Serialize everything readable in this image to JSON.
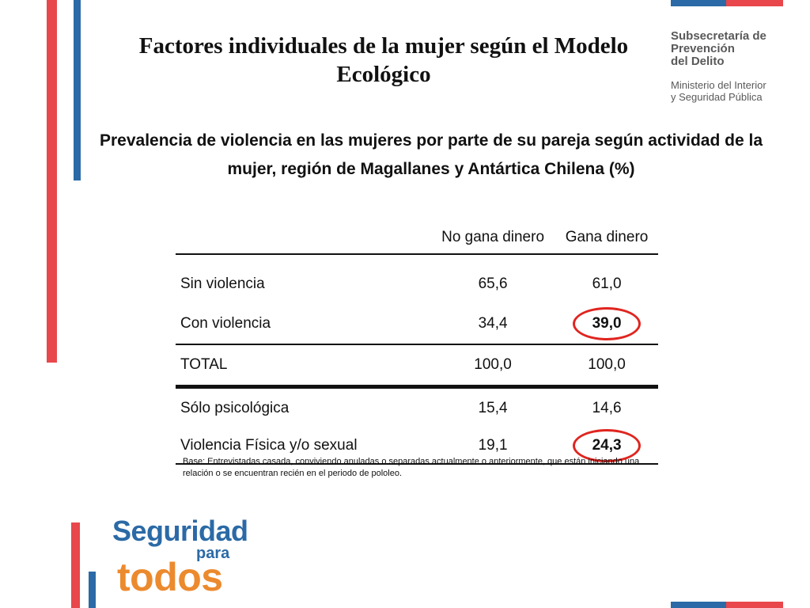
{
  "slide": {
    "title": "Factores individuales de la mujer según el Modelo Ecológico",
    "subtitle": "Prevalencia de violencia en las mujeres por parte de su pareja según actividad de la  mujer, región de Magallanes y Antártica Chilena (%)"
  },
  "brand": {
    "line1": "Subsecretaría de",
    "line2": "Prevención",
    "line3": "del Delito",
    "ministry1": "Ministerio del Interior",
    "ministry2": "y Seguridad Pública"
  },
  "table": {
    "headers": [
      "",
      "No gana dinero",
      "Gana dinero"
    ],
    "rows": [
      {
        "label": "Sin violencia",
        "no_gana": "65,6",
        "gana": "61,0"
      },
      {
        "label": "Con violencia",
        "no_gana": "34,4",
        "gana": "39,0"
      },
      {
        "label": "TOTAL",
        "no_gana": "100,0",
        "gana": "100,0"
      },
      {
        "label": "Sólo psicológica",
        "no_gana": "15,4",
        "gana": "14,6"
      },
      {
        "label": "Violencia Física y/o sexual",
        "no_gana": "19,1",
        "gana": "24,3"
      }
    ]
  },
  "note": "Base: Entrevistadas casada, conviviendo anuladas o separadas actualmente o anteriormente, que están iniciando una relación o se encuentran recién en el periodo de pololeo.",
  "logo": {
    "line1": "Seguridad",
    "line2": "para",
    "line3": "todos"
  },
  "colors": {
    "red": "#e8474b",
    "blue": "#2b6aa6",
    "orange": "#ec8a2e",
    "ring": "#e0251f"
  }
}
